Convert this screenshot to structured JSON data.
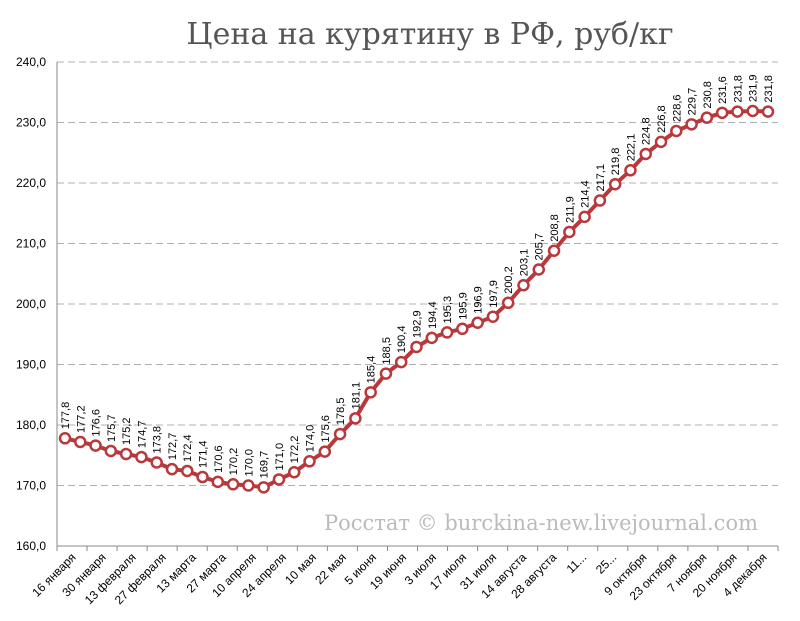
{
  "chart_data": {
    "type": "line",
    "title": "Цена на курятину в РФ, руб/кг",
    "watermark": "Росстат © burckina-new.livejournal.com",
    "xlabel": "",
    "ylabel": "",
    "ylim": [
      160,
      240
    ],
    "yticks": [
      "160,0",
      "170,0",
      "180,0",
      "190,0",
      "200,0",
      "210,0",
      "220,0",
      "230,0",
      "240,0"
    ],
    "grid": true,
    "x_tick_labels": [
      "16 января",
      "30 января",
      "13 февраля",
      "27 февраля",
      "13 марта",
      "27 марта",
      "10 апреля",
      "24 апреля",
      "10 мая",
      "22 мая",
      "5 июня",
      "19 июня",
      "3 июля",
      "17 июля",
      "31 июля",
      "14 августа",
      "28 августа",
      "11...",
      "25...",
      "9 октября",
      "23 октября",
      "7 ноября",
      "20 ноября",
      "4 декабря"
    ],
    "values": [
      177.8,
      177.2,
      176.6,
      175.7,
      175.2,
      174.7,
      173.8,
      172.7,
      172.4,
      171.4,
      170.6,
      170.2,
      170.0,
      169.7,
      171.0,
      172.2,
      174.0,
      175.6,
      178.5,
      181.1,
      185.4,
      188.5,
      190.4,
      192.9,
      194.4,
      195.3,
      195.9,
      196.9,
      197.9,
      200.2,
      203.1,
      205.7,
      208.8,
      211.9,
      214.4,
      217.1,
      219.8,
      222.1,
      224.8,
      226.8,
      228.6,
      229.7,
      230.8,
      231.6,
      231.8,
      231.9,
      231.8
    ],
    "value_labels": [
      "177,8",
      "177,2",
      "176,6",
      "175,7",
      "175,2",
      "174,7",
      "173,8",
      "172,7",
      "172,4",
      "171,4",
      "170,6",
      "170,2",
      "170,0",
      "169,7",
      "171,0",
      "172,2",
      "174,0",
      "175,6",
      "178,5",
      "181,1",
      "185,4",
      "188,5",
      "190,4",
      "192,9",
      "194,4",
      "195,3",
      "195,9",
      "196,9",
      "197,9",
      "200,2",
      "203,1",
      "205,7",
      "208,8",
      "211,9",
      "214,4",
      "217,1",
      "219,8",
      "222,1",
      "224,8",
      "226,8",
      "228,6",
      "229,7",
      "230,8",
      "231,6",
      "231,8",
      "231,9",
      "231,8"
    ],
    "colors": {
      "line": "#b8383b",
      "marker_fill": "#ffffff",
      "grid": "#b0b0b0"
    }
  }
}
